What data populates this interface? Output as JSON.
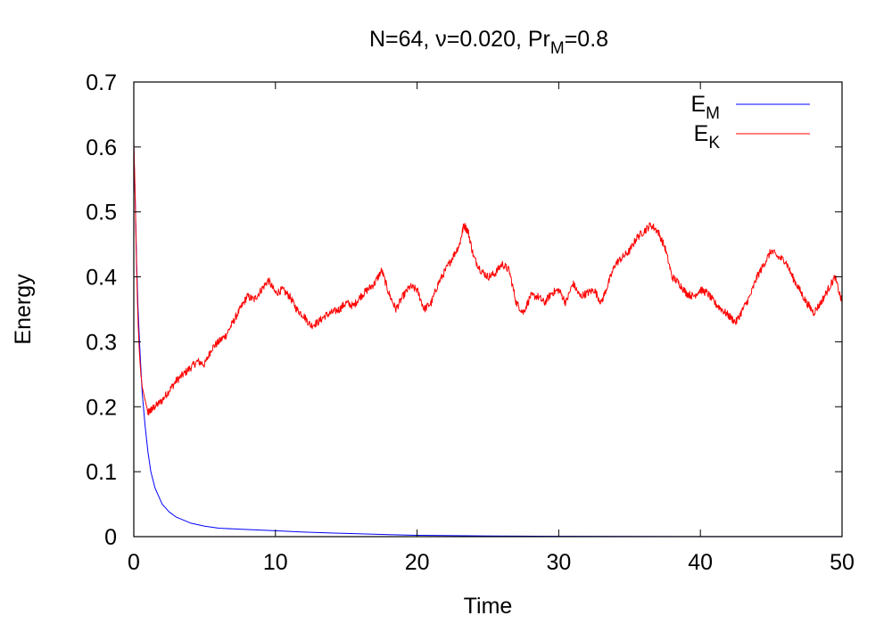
{
  "chart_data": {
    "type": "line",
    "title": "N=64, ν=0.020, Pr",
    "title_sub": "M",
    "title_suffix": "=0.8",
    "xlabel": "Time",
    "ylabel": "Energy",
    "xlim": [
      0,
      50
    ],
    "ylim": [
      0,
      0.7
    ],
    "xticks": [
      "0",
      "10",
      "20",
      "30",
      "40",
      "50"
    ],
    "yticks": [
      "0",
      "0.1",
      "0.2",
      "0.3",
      "0.4",
      "0.5",
      "0.6",
      "0.7"
    ],
    "grid": false,
    "legend_position": "top-right",
    "series": [
      {
        "name": "E",
        "name_sub": "M",
        "color": "#0000ff",
        "x": [
          0,
          0.1,
          0.2,
          0.3,
          0.4,
          0.5,
          0.6,
          0.8,
          1.0,
          1.2,
          1.5,
          2.0,
          2.5,
          3.0,
          4.0,
          5.0,
          6.0,
          7.0,
          8.0,
          10.0,
          12.0,
          15.0,
          18.0,
          20.0,
          25.0,
          30.0,
          40.0,
          50.0
        ],
        "y": [
          0.6,
          0.52,
          0.42,
          0.35,
          0.3,
          0.26,
          0.22,
          0.17,
          0.13,
          0.1,
          0.075,
          0.05,
          0.038,
          0.03,
          0.021,
          0.016,
          0.013,
          0.012,
          0.011,
          0.009,
          0.007,
          0.005,
          0.003,
          0.002,
          0.001,
          0.0005,
          0.0002,
          0.0001
        ]
      },
      {
        "name": "E",
        "name_sub": "K",
        "color": "#ff0000",
        "x": [
          0,
          0.1,
          0.2,
          0.3,
          0.4,
          0.5,
          0.6,
          0.8,
          1.0,
          1.2,
          1.5,
          2.0,
          2.5,
          3.0,
          3.5,
          4.0,
          4.5,
          5.0,
          5.5,
          6.0,
          6.5,
          7.0,
          7.5,
          8.0,
          8.5,
          9.0,
          9.5,
          10.0,
          10.5,
          11.0,
          11.5,
          12.0,
          12.5,
          13.0,
          13.5,
          14.0,
          14.5,
          15.0,
          15.5,
          16.0,
          16.5,
          17.0,
          17.5,
          18.0,
          18.5,
          19.0,
          19.5,
          20.0,
          20.5,
          21.0,
          21.5,
          22.0,
          22.5,
          23.0,
          23.3,
          23.6,
          24.0,
          24.5,
          25.0,
          25.5,
          26.0,
          26.5,
          27.0,
          27.5,
          28.0,
          28.5,
          29.0,
          29.5,
          30.0,
          30.5,
          31.0,
          31.5,
          32.0,
          32.5,
          33.0,
          33.5,
          34.0,
          34.5,
          35.0,
          35.5,
          36.0,
          36.5,
          37.0,
          37.5,
          38.0,
          38.5,
          39.0,
          39.5,
          40.0,
          40.5,
          41.0,
          41.5,
          42.0,
          42.5,
          43.0,
          43.5,
          44.0,
          44.5,
          45.0,
          45.5,
          46.0,
          46.5,
          47.0,
          47.5,
          48.0,
          48.5,
          49.0,
          49.5,
          50.0
        ],
        "y": [
          0.61,
          0.52,
          0.41,
          0.33,
          0.28,
          0.25,
          0.23,
          0.21,
          0.19,
          0.195,
          0.2,
          0.21,
          0.225,
          0.24,
          0.25,
          0.26,
          0.27,
          0.265,
          0.29,
          0.3,
          0.31,
          0.33,
          0.35,
          0.37,
          0.365,
          0.38,
          0.395,
          0.375,
          0.38,
          0.37,
          0.35,
          0.34,
          0.325,
          0.33,
          0.34,
          0.345,
          0.35,
          0.36,
          0.355,
          0.37,
          0.38,
          0.39,
          0.41,
          0.375,
          0.35,
          0.37,
          0.385,
          0.38,
          0.35,
          0.36,
          0.39,
          0.41,
          0.43,
          0.45,
          0.48,
          0.47,
          0.43,
          0.41,
          0.4,
          0.405,
          0.42,
          0.41,
          0.36,
          0.345,
          0.37,
          0.37,
          0.36,
          0.375,
          0.38,
          0.36,
          0.39,
          0.37,
          0.375,
          0.38,
          0.36,
          0.39,
          0.42,
          0.43,
          0.44,
          0.46,
          0.47,
          0.48,
          0.47,
          0.445,
          0.4,
          0.39,
          0.375,
          0.37,
          0.38,
          0.375,
          0.36,
          0.35,
          0.34,
          0.33,
          0.35,
          0.37,
          0.4,
          0.42,
          0.44,
          0.43,
          0.425,
          0.4,
          0.38,
          0.36,
          0.345,
          0.36,
          0.38,
          0.4,
          0.36
        ]
      }
    ]
  }
}
